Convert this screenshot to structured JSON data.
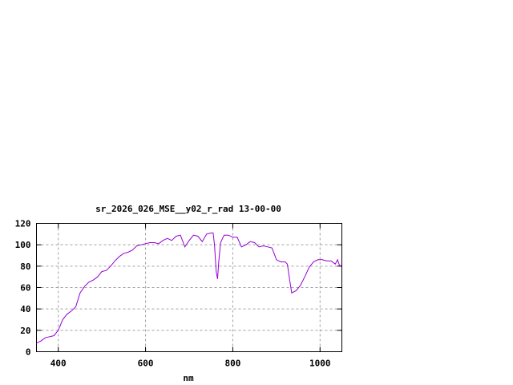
{
  "chart_data": {
    "type": "line",
    "title": "sr_2026_026_MSE__y02_r_rad 13-00-00",
    "xlabel": "nm",
    "ylabel": "",
    "xlim": [
      350,
      1050
    ],
    "ylim": [
      0,
      120
    ],
    "xticks": [
      400,
      600,
      800,
      1000
    ],
    "yticks": [
      0,
      20,
      40,
      60,
      80,
      100,
      120
    ],
    "grid": true,
    "line_color": "#9400d3",
    "grid_color": "#a0a0a0",
    "series": [
      {
        "x": [
          350,
          360,
          370,
          380,
          390,
          400,
          410,
          420,
          430,
          440,
          450,
          460,
          470,
          480,
          490,
          500,
          510,
          520,
          530,
          540,
          550,
          560,
          570,
          580,
          590,
          600,
          610,
          620,
          630,
          640,
          650,
          660,
          670,
          680,
          690,
          700,
          710,
          720,
          730,
          740,
          750,
          755,
          758,
          762,
          765,
          768,
          772,
          780,
          790,
          800,
          810,
          820,
          830,
          840,
          850,
          860,
          870,
          880,
          890,
          900,
          910,
          920,
          925,
          930,
          935,
          945,
          955,
          965,
          975,
          985,
          995,
          1005,
          1015,
          1025,
          1035,
          1040,
          1045,
          1050
        ],
        "y": [
          8,
          10,
          13,
          14,
          15,
          20,
          30,
          35,
          38,
          42,
          55,
          61,
          65,
          67,
          70,
          75,
          76,
          80,
          85,
          89,
          92,
          93,
          95,
          99,
          100,
          101,
          102,
          102,
          101,
          104,
          106,
          104,
          108,
          109,
          98,
          104,
          109,
          108,
          103,
          110,
          111,
          111,
          100,
          75,
          68,
          85,
          102,
          109,
          109,
          107,
          107,
          98,
          100,
          103,
          102,
          98,
          99,
          98,
          97,
          86,
          84,
          84,
          82,
          68,
          55,
          57,
          62,
          70,
          79,
          84,
          86,
          86,
          85,
          85,
          82,
          86,
          80,
          81
        ]
      }
    ]
  }
}
